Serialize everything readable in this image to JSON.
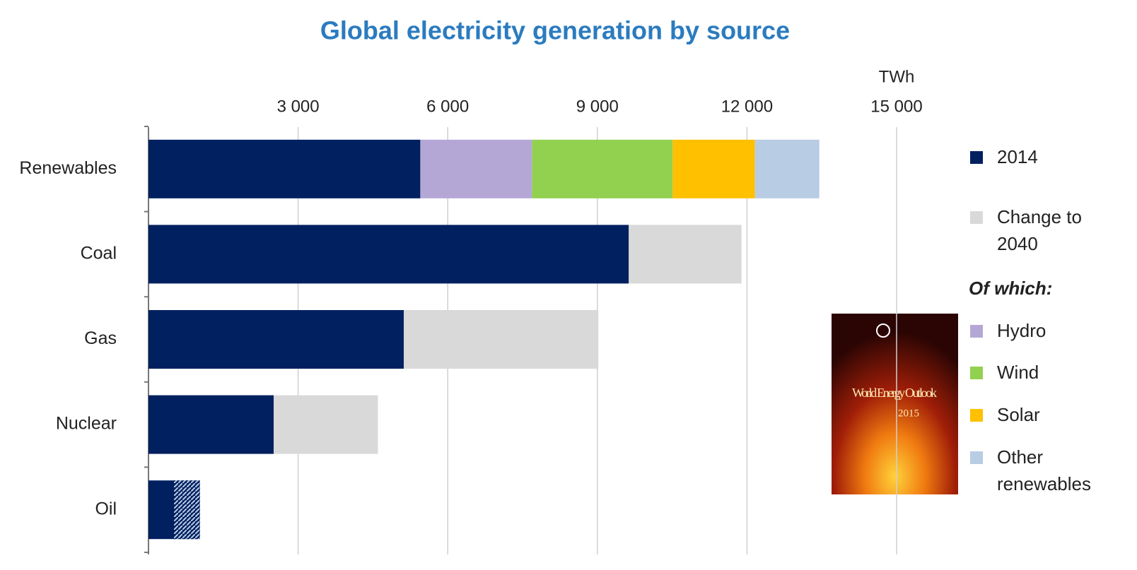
{
  "chart_data": {
    "type": "stacked_bar_horizontal",
    "title": "Global electricity generation by source",
    "x_unit": "TWh",
    "categories": [
      "Renewables",
      "Coal",
      "Gas",
      "Nuclear",
      "Oil"
    ],
    "series": [
      {
        "name": "2014",
        "color": "#002060",
        "values": [
          5450,
          9630,
          5120,
          2510,
          1030
        ]
      },
      {
        "name": "Change to 2040",
        "color": "#d9d9d9",
        "values": [
          null,
          2260,
          3900,
          2090,
          -520
        ]
      },
      {
        "name": "Hydro",
        "color": "#b4a7d6",
        "values": [
          2240,
          null,
          null,
          null,
          null
        ]
      },
      {
        "name": "Wind",
        "color": "#92d050",
        "values": [
          2820,
          null,
          null,
          null,
          null
        ]
      },
      {
        "name": "Solar",
        "color": "#ffc000",
        "values": [
          1650,
          null,
          null,
          null,
          null
        ]
      },
      {
        "name": "Other renewables",
        "color": "#b8cce4",
        "values": [
          1290,
          null,
          null,
          null,
          null
        ]
      }
    ],
    "legend_group_title": "Of which:",
    "xlim": [
      0,
      15000
    ],
    "xticks": [
      {
        "value": 3000,
        "label": "3 000"
      },
      {
        "value": 6000,
        "label": "6 000"
      },
      {
        "value": 9000,
        "label": "9 000"
      },
      {
        "value": 12000,
        "label": "12 000"
      },
      {
        "value": 15000,
        "label": "15 000"
      }
    ],
    "grid": true,
    "cover": {
      "title": "World Energy Outlook",
      "year": "2015"
    }
  }
}
